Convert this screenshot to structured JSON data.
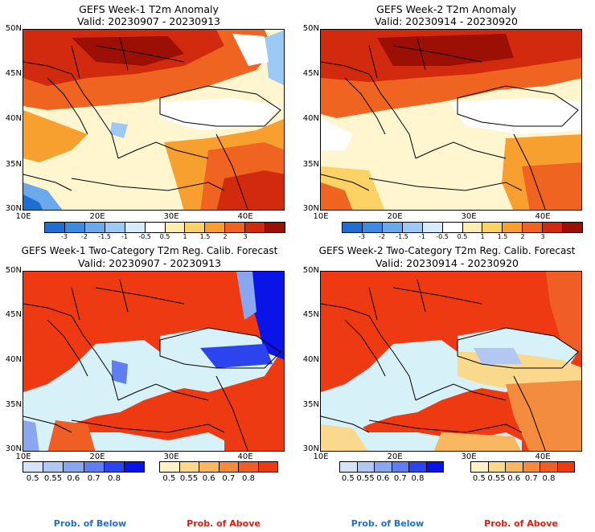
{
  "panels": [
    {
      "title": "GEFS Week-1 T2m Anomaly",
      "valid": "Valid: 20230907 - 20230913"
    },
    {
      "title": "GEFS Week-2 T2m Anomaly",
      "valid": "Valid: 20230914 - 20230920"
    },
    {
      "title": "GEFS Week-1 Two-Category T2m Reg. Calib. Forecast",
      "valid": "Valid: 20230907 - 20230913"
    },
    {
      "title": "GEFS Week-2 Two-Category T2m Reg. Calib. Forecast",
      "valid": "Valid: 20230914 - 20230920"
    }
  ],
  "lat_labels": [
    "50N",
    "45N",
    "40N",
    "35N",
    "30N"
  ],
  "lon_labels": [
    "10E",
    "20E",
    "30E",
    "40E"
  ],
  "anomaly_colorbar": {
    "ticks": [
      "-3",
      "-2",
      "-1.5",
      "-1",
      "-0.5",
      "0.5",
      "1",
      "1.5",
      "2",
      "3"
    ],
    "colors": [
      "#1e6fd1",
      "#3b8be0",
      "#69a9ec",
      "#9cc9f5",
      "#d6ebfb",
      "#ffffff",
      "#fdeeb0",
      "#fcd264",
      "#f8a02f",
      "#ee6420",
      "#d22a0e",
      "#9c0f05"
    ]
  },
  "prob_below_colorbar": {
    "ticks": [
      "0.5",
      "0.55",
      "0.6",
      "0.7",
      "0.8"
    ],
    "colors": [
      "#d7e3f7",
      "#b2c7f1",
      "#8aa6ee",
      "#5f7ff0",
      "#2b44ee",
      "#0a14e6"
    ]
  },
  "prob_above_colorbar": {
    "ticks": [
      "0.5",
      "0.55",
      "0.6",
      "0.7",
      "0.8"
    ],
    "colors": [
      "#fdf1c9",
      "#fbd98c",
      "#f8b760",
      "#f38c3f",
      "#ef5f25",
      "#ee3a12"
    ]
  },
  "labels": {
    "below": "Prob. of Below",
    "above": "Prob. of Above"
  },
  "colors": {
    "below_text": "#1e6fd1",
    "above_text": "#e21b0c",
    "ocean": "#d6f1f7"
  }
}
